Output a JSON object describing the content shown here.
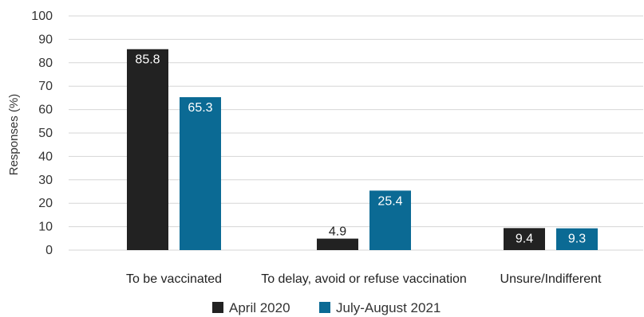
{
  "chart_data": {
    "type": "bar",
    "categories": [
      "To be vaccinated",
      "To delay, avoid or refuse vaccination",
      "Unsure/Indifferent"
    ],
    "series": [
      {
        "name": "April 2020",
        "values": [
          85.8,
          4.9,
          9.4
        ],
        "color": "#222222",
        "label_color": "#ffffff"
      },
      {
        "name": "July-August 2021",
        "values": [
          65.3,
          25.4,
          9.3
        ],
        "color": "#0b6a94",
        "label_color": "#ffffff"
      }
    ],
    "ylabel": "Responses (%)",
    "xlabel": "",
    "ylim": [
      0,
      100
    ],
    "yticks": [
      0,
      10,
      20,
      30,
      40,
      50,
      60,
      70,
      80,
      90,
      100
    ],
    "grid": true,
    "legend_placement": "bottom-center"
  }
}
